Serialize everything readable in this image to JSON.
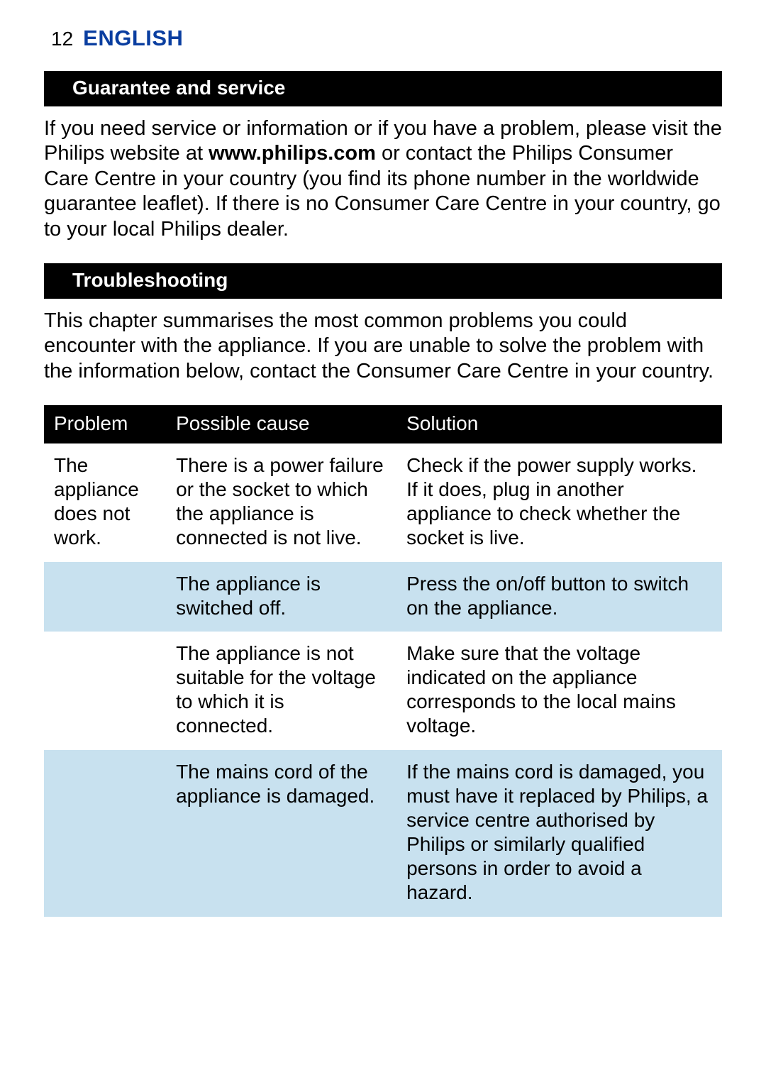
{
  "header": {
    "page_number": "12",
    "language": "ENGLISH",
    "language_color": "#0a3ea0"
  },
  "sections": {
    "guarantee": {
      "title": "Guarantee and service",
      "text_before_bold": "If you need service or information or if you have a problem, please visit the Philips website at ",
      "bold_text": "www.philips.com",
      "text_after_bold": " or contact the Philips Consumer Care Centre in your country (you find its phone number in the worldwide guarantee leaflet). If there is no Consumer Care Centre in your country, go to your local Philips dealer."
    },
    "troubleshooting": {
      "title": "Troubleshooting",
      "intro": "This chapter summarises the most common problems you could encounter with the appliance. If you are unable to solve the problem with the information below, contact the Consumer Care Centre in your country."
    }
  },
  "table": {
    "header_bg": "#000000",
    "header_fg": "#ffffff",
    "row_odd_bg": "#ffffff",
    "row_even_bg": "#c8e1ef",
    "columns": {
      "problem": "Problem",
      "cause": "Possible cause",
      "solution": "Solution"
    },
    "rows": [
      {
        "problem": "The appliance does not work.",
        "cause": "There is a power failure or the socket to which the appliance is connected is not live.",
        "solution": "Check if the power supply works. If it does, plug in another appliance to check whether the socket is live."
      },
      {
        "problem": "",
        "cause": "The appliance is switched off.",
        "solution": "Press the on/off button to switch on the appliance."
      },
      {
        "problem": "",
        "cause": "The appliance is not suitable for the voltage to which it is connected.",
        "solution": "Make sure that the voltage indicated on the appliance corresponds to the local mains voltage."
      },
      {
        "problem": "",
        "cause": "The mains cord of the appliance is damaged.",
        "solution": "If the mains cord is damaged, you must have it replaced by Philips, a service centre authorised by Philips or similarly qualified persons in order to avoid a hazard."
      }
    ]
  },
  "style": {
    "body_font_size": 29,
    "table_font_size": 28,
    "section_bar_bg": "#000000",
    "section_bar_fg": "#ffffff",
    "page_bg": "#ffffff",
    "text_color": "#000000"
  }
}
